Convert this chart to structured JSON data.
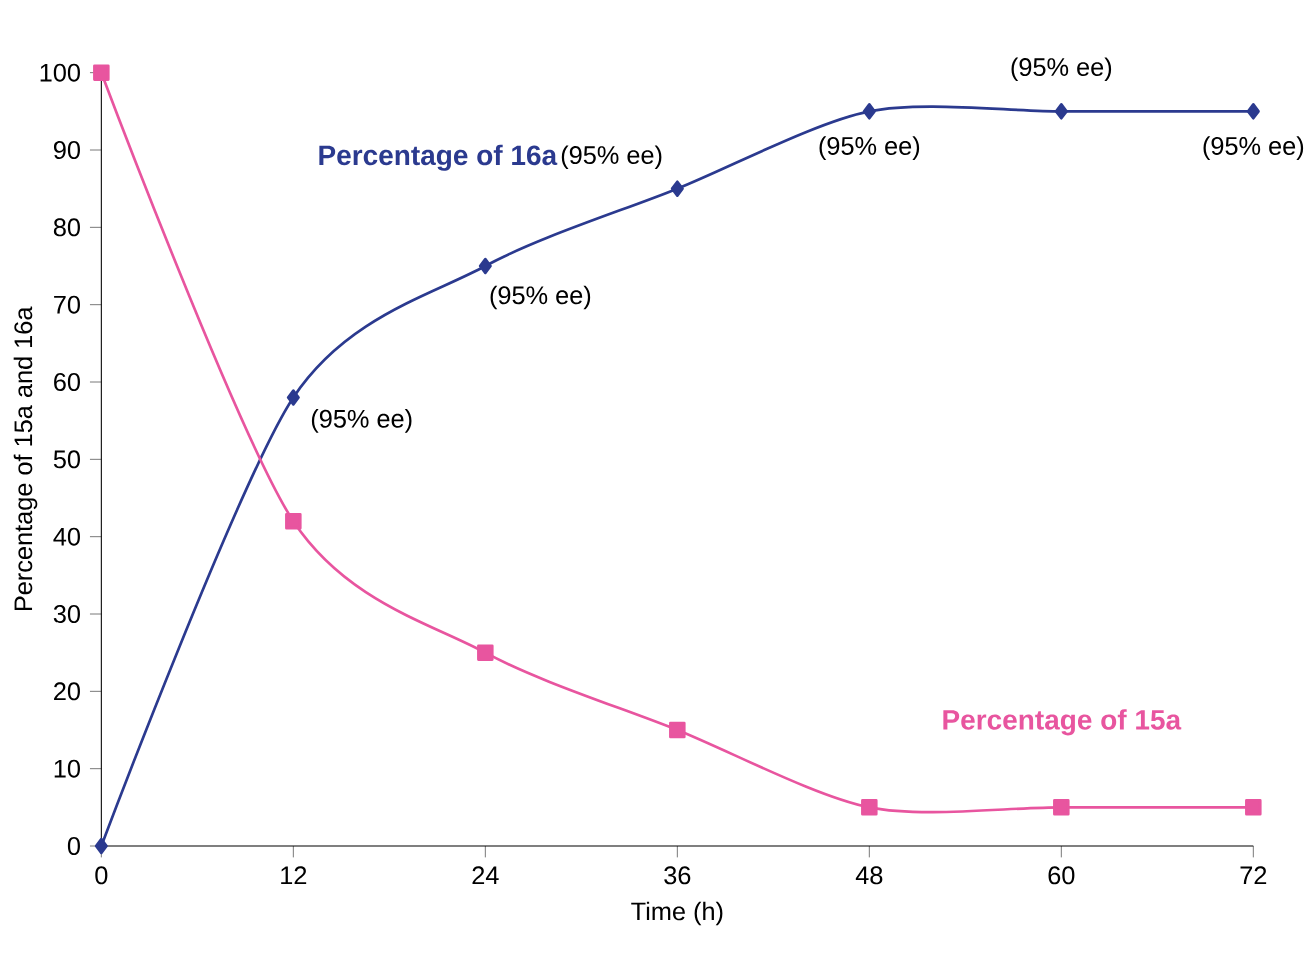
{
  "chart_data": {
    "type": "line",
    "xlabel": "Time (h)",
    "ylabel": "Percentage of 15a and 16a",
    "x": [
      0,
      12,
      24,
      36,
      48,
      60,
      72
    ],
    "series": [
      {
        "name": "Percentage of 16a",
        "color": "#2b3a8f",
        "marker": "diamond",
        "values": [
          0,
          58,
          75,
          85,
          95,
          95,
          95
        ]
      },
      {
        "name": "Percentage of 15a",
        "color": "#e8559f",
        "marker": "square",
        "values": [
          100,
          42,
          25,
          15,
          5,
          5,
          5
        ]
      }
    ],
    "xlim": [
      0,
      72
    ],
    "xticks": [
      0,
      12,
      24,
      36,
      48,
      60,
      72
    ],
    "ylim": [
      0,
      100
    ],
    "yticks": [
      0,
      10,
      20,
      30,
      40,
      50,
      60,
      70,
      80,
      90,
      100
    ],
    "grid": false,
    "legend": false,
    "annotations": [
      {
        "text": "(95% ee)",
        "x": 12,
        "y": 58
      },
      {
        "text": "(95% ee)",
        "x": 24,
        "y": 75
      },
      {
        "text": "(95% ee)",
        "x": 36,
        "y": 85
      },
      {
        "text": "(95% ee)",
        "x": 48,
        "y": 95
      },
      {
        "text": "(95% ee)",
        "x": 60,
        "y": 95
      },
      {
        "text": "(95% ee)",
        "x": 72,
        "y": 95
      }
    ]
  }
}
